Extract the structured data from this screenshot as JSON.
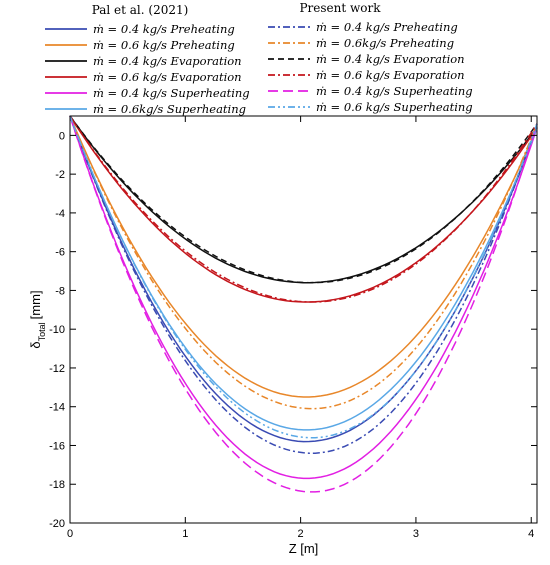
{
  "chart_data": {
    "type": "line",
    "title": "",
    "xlabel": "Z [m]",
    "ylabel_main": "δ",
    "ylabel_sub": "Total",
    "ylabel_unit": "[mm]",
    "xlim": [
      0,
      4.05
    ],
    "ylim": [
      -20,
      1
    ],
    "x_ticks": [
      0,
      1,
      2,
      3,
      4
    ],
    "y_ticks": [
      0,
      -2,
      -4,
      -6,
      -8,
      -10,
      -12,
      -14,
      -16,
      -18,
      -20
    ],
    "grid": false,
    "legend_titles": {
      "reference": "Pal et al. (2021)",
      "present": "Present work"
    },
    "colors": {
      "preheat_04": "#3a4bb3",
      "preheat_06": "#e8872a",
      "evap_04": "#111111",
      "evap_06": "#c4161c",
      "super_04": "#e21fe3",
      "super_06": "#5aa8e6"
    },
    "series": [
      {
        "name": "ṁ = 0.4 kg/s Preheating",
        "group": "reference",
        "dash": "solid",
        "color_key": "preheat_04",
        "min_z": 2.05,
        "min_value": -15.8,
        "end_value": 0.4
      },
      {
        "name": "ṁ = 0.6 kg/s Preheating",
        "group": "reference",
        "dash": "solid",
        "color_key": "preheat_06",
        "min_z": 2.05,
        "min_value": -13.5,
        "end_value": 0.4
      },
      {
        "name": "ṁ = 0.4 kg/s Evaporation",
        "group": "reference",
        "dash": "solid",
        "color_key": "evap_04",
        "min_z": 2.05,
        "min_value": -7.6,
        "end_value": 0.4
      },
      {
        "name": "ṁ = 0.6 kg/s Evaporation",
        "group": "reference",
        "dash": "solid",
        "color_key": "evap_06",
        "min_z": 2.05,
        "min_value": -8.6,
        "end_value": 0.4
      },
      {
        "name": "ṁ = 0.4 kg/s Superheating",
        "group": "reference",
        "dash": "solid",
        "color_key": "super_04",
        "min_z": 2.05,
        "min_value": -17.7,
        "end_value": 0.4
      },
      {
        "name": "ṁ = 0.6kg/s Superheating",
        "group": "reference",
        "dash": "solid",
        "color_key": "super_06",
        "min_z": 2.05,
        "min_value": -15.2,
        "end_value": 0.4
      },
      {
        "name": "ṁ = 0.4 kg/s Preheating",
        "group": "present",
        "dash": "dashdot",
        "color_key": "preheat_04",
        "min_z": 2.1,
        "min_value": -16.4,
        "end_value": 0.6
      },
      {
        "name": "ṁ = 0.6kg/s Preheating",
        "group": "present",
        "dash": "dashdot",
        "color_key": "preheat_06",
        "min_z": 2.1,
        "min_value": -14.1,
        "end_value": 0.6
      },
      {
        "name": "ṁ = 0.4 kg/s Evaporation",
        "group": "present",
        "dash": "dash",
        "color_key": "evap_04",
        "min_z": 2.1,
        "min_value": -7.6,
        "end_value": 0.6
      },
      {
        "name": "ṁ = 0.6 kg/s Evaporation",
        "group": "present",
        "dash": "dashdot",
        "color_key": "evap_06",
        "min_z": 2.1,
        "min_value": -8.6,
        "end_value": 0.6
      },
      {
        "name": "ṁ = 0.4 kg/s Superheating",
        "group": "present",
        "dash": "longdash",
        "color_key": "super_04",
        "min_z": 2.1,
        "min_value": -18.4,
        "end_value": 0.6
      },
      {
        "name": "ṁ = 0.6 kg/s Superheating",
        "group": "present",
        "dash": "dashdotdot",
        "color_key": "super_06",
        "min_z": 2.1,
        "min_value": -15.6,
        "end_value": 0.6
      }
    ]
  }
}
